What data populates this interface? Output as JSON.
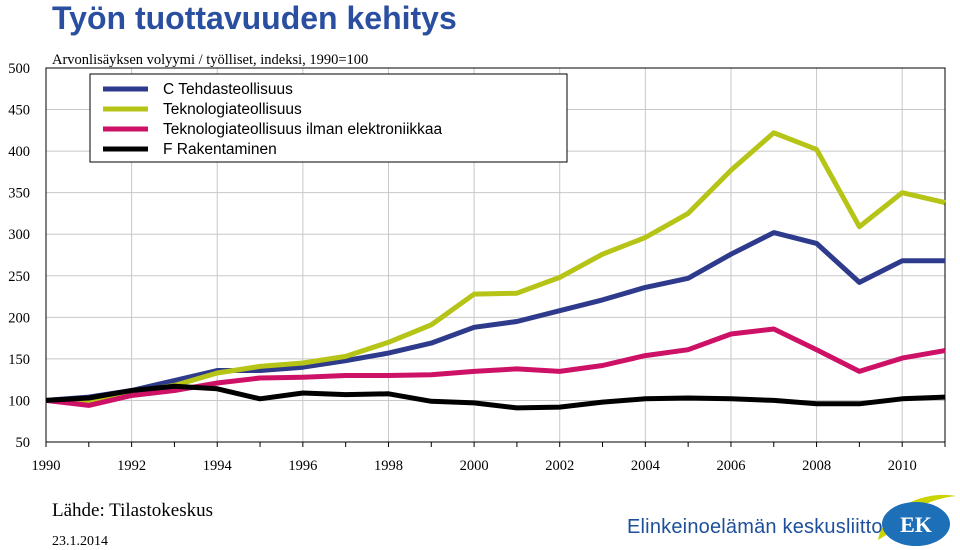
{
  "header": {
    "title": "Työn tuottavuuden kehitys",
    "subtitle": "Arvonlisäyksen volyymi / työlliset, indeksi, 1990=100"
  },
  "footer": {
    "source": "Lähde: Tilastokeskus",
    "date": "23.1.2014",
    "brand": "Elinkeinoelämän keskusliitto",
    "logo_text": "EK"
  },
  "colors": {
    "c_tehdasteollisuus": "#2e3a8c",
    "teknologiateollisuus": "#b5c416",
    "tekno_ilman": "#cc1166",
    "rakentaminen": "#000000",
    "title": "#2a4fa0",
    "brand": "#1d4f9a"
  },
  "chart_data": {
    "type": "line",
    "title": "Työn tuottavuuden kehitys",
    "subtitle": "Arvonlisäyksen volyymi / työlliset, indeksi, 1990=100",
    "xlabel": "",
    "ylabel": "",
    "xlim": [
      1990,
      2011
    ],
    "ylim": [
      50,
      500
    ],
    "yticks": [
      50,
      100,
      150,
      200,
      250,
      300,
      350,
      400,
      450,
      500
    ],
    "xticks": [
      1990,
      1992,
      1994,
      1996,
      1998,
      2000,
      2002,
      2004,
      2006,
      2008,
      2010
    ],
    "grid": true,
    "legend_position": "top-left",
    "x": [
      1990,
      1991,
      1992,
      1993,
      1994,
      1995,
      1996,
      1997,
      1998,
      1999,
      2000,
      2001,
      2002,
      2003,
      2004,
      2005,
      2006,
      2007,
      2008,
      2009,
      2010,
      2011
    ],
    "series": [
      {
        "name": "C Tehdasteollisuus",
        "color_key": "c_tehdasteollisuus",
        "values": [
          100,
          104,
          112,
          124,
          136,
          136,
          140,
          148,
          157,
          169,
          188,
          195,
          208,
          221,
          236,
          247,
          276,
          302,
          289,
          242,
          268,
          268
        ]
      },
      {
        "name": "Teknologiateollisuus",
        "color_key": "teknologiateollisuus",
        "values": [
          100,
          100,
          110,
          118,
          133,
          141,
          145,
          153,
          170,
          191,
          228,
          229,
          248,
          276,
          296,
          325,
          377,
          422,
          402,
          309,
          350,
          338
        ]
      },
      {
        "name": "Teknologiateollisuus ilman elektroniikkaa",
        "color_key": "tekno_ilman",
        "values": [
          100,
          94,
          106,
          112,
          121,
          127,
          128,
          130,
          130,
          131,
          135,
          138,
          135,
          142,
          154,
          161,
          180,
          186,
          161,
          135,
          151,
          160
        ]
      },
      {
        "name": "F Rakentaminen",
        "color_key": "rakentaminen",
        "values": [
          100,
          103,
          112,
          117,
          114,
          102,
          109,
          107,
          108,
          99,
          97,
          91,
          92,
          98,
          102,
          103,
          102,
          100,
          96,
          96,
          102,
          104
        ]
      }
    ]
  }
}
